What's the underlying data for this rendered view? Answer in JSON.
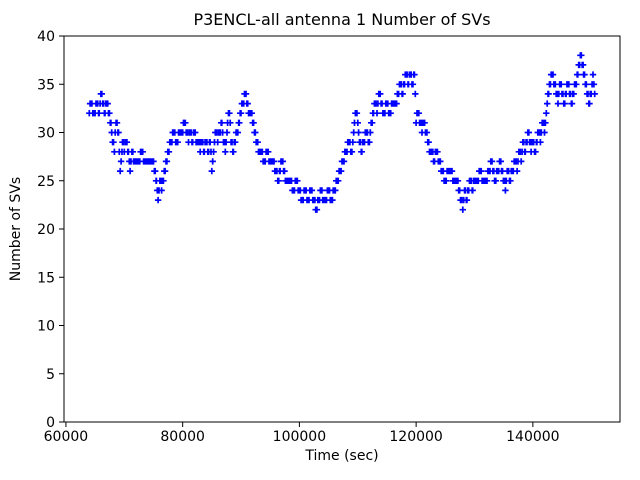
{
  "chart_data": {
    "type": "scatter",
    "title": "P3ENCL-all antenna 1 Number of SVs",
    "xlabel": "Time (sec)",
    "ylabel": "Number of SVs",
    "marker": "plus",
    "color": "#0000ff",
    "grid": false,
    "legend": "none",
    "xlim": [
      59670,
      154930
    ],
    "ylim": [
      0,
      40
    ],
    "xticks": [
      60000,
      80000,
      100000,
      120000,
      140000
    ],
    "yticks": [
      0,
      5,
      10,
      15,
      20,
      25,
      30,
      35,
      40
    ],
    "sample_step_sec": 150,
    "points": [
      [
        64000,
        32
      ],
      [
        64300,
        33
      ],
      [
        64700,
        32
      ],
      [
        65000,
        32
      ],
      [
        65300,
        33
      ],
      [
        65700,
        32
      ],
      [
        66000,
        34
      ],
      [
        66300,
        33
      ],
      [
        66700,
        32
      ],
      [
        67000,
        33
      ],
      [
        67300,
        32
      ],
      [
        67700,
        31
      ],
      [
        68000,
        29
      ],
      [
        68300,
        28
      ],
      [
        68600,
        31
      ],
      [
        69000,
        30
      ],
      [
        69300,
        26
      ],
      [
        69700,
        29
      ],
      [
        70000,
        28
      ],
      [
        70300,
        29
      ],
      [
        70700,
        28
      ],
      [
        71000,
        26
      ],
      [
        71300,
        28
      ],
      [
        71700,
        27
      ],
      [
        72000,
        27
      ],
      [
        72500,
        27
      ],
      [
        73000,
        28
      ],
      [
        73500,
        27
      ],
      [
        74000,
        27
      ],
      [
        74500,
        27
      ],
      [
        75000,
        27
      ],
      [
        75500,
        25
      ],
      [
        75800,
        23
      ],
      [
        76100,
        25
      ],
      [
        76400,
        24
      ],
      [
        76700,
        25
      ],
      [
        77000,
        26
      ],
      [
        77500,
        28
      ],
      [
        78000,
        29
      ],
      [
        78500,
        30
      ],
      [
        79000,
        29
      ],
      [
        79500,
        30
      ],
      [
        80000,
        30
      ],
      [
        80300,
        31
      ],
      [
        80700,
        30
      ],
      [
        81000,
        29
      ],
      [
        81300,
        30
      ],
      [
        81700,
        29
      ],
      [
        82000,
        30
      ],
      [
        82300,
        29
      ],
      [
        82700,
        29
      ],
      [
        83000,
        28
      ],
      [
        83300,
        29
      ],
      [
        83700,
        28
      ],
      [
        84000,
        29
      ],
      [
        84300,
        28
      ],
      [
        84700,
        29
      ],
      [
        85000,
        26
      ],
      [
        85300,
        28
      ],
      [
        85700,
        30
      ],
      [
        86000,
        29
      ],
      [
        86300,
        30
      ],
      [
        86700,
        31
      ],
      [
        87000,
        29
      ],
      [
        87300,
        28
      ],
      [
        87700,
        31
      ],
      [
        88000,
        32
      ],
      [
        88300,
        29
      ],
      [
        88700,
        28
      ],
      [
        89000,
        29
      ],
      [
        89300,
        30
      ],
      [
        89700,
        31
      ],
      [
        90000,
        32
      ],
      [
        90300,
        33
      ],
      [
        90700,
        34
      ],
      [
        91000,
        33
      ],
      [
        91300,
        32
      ],
      [
        91700,
        32
      ],
      [
        92000,
        31
      ],
      [
        92300,
        30
      ],
      [
        92700,
        29
      ],
      [
        93000,
        28
      ],
      [
        93500,
        28
      ],
      [
        94000,
        27
      ],
      [
        94500,
        28
      ],
      [
        95000,
        27
      ],
      [
        95500,
        27
      ],
      [
        96000,
        26
      ],
      [
        96300,
        25
      ],
      [
        96700,
        26
      ],
      [
        97000,
        27
      ],
      [
        97300,
        26
      ],
      [
        97700,
        25
      ],
      [
        98000,
        25
      ],
      [
        98500,
        25
      ],
      [
        99000,
        24
      ],
      [
        99500,
        25
      ],
      [
        100000,
        24
      ],
      [
        100500,
        23
      ],
      [
        101000,
        24
      ],
      [
        101500,
        23
      ],
      [
        102000,
        24
      ],
      [
        102500,
        23
      ],
      [
        103000,
        22
      ],
      [
        103300,
        23
      ],
      [
        103700,
        24
      ],
      [
        104000,
        23
      ],
      [
        104500,
        23
      ],
      [
        105000,
        24
      ],
      [
        105500,
        23
      ],
      [
        106000,
        24
      ],
      [
        106500,
        25
      ],
      [
        107000,
        26
      ],
      [
        107500,
        27
      ],
      [
        108000,
        28
      ],
      [
        108500,
        29
      ],
      [
        109000,
        28
      ],
      [
        109300,
        30
      ],
      [
        109700,
        32
      ],
      [
        110000,
        31
      ],
      [
        110300,
        29
      ],
      [
        110700,
        28
      ],
      [
        111000,
        29
      ],
      [
        111500,
        30
      ],
      [
        112000,
        29
      ],
      [
        112300,
        31
      ],
      [
        112700,
        32
      ],
      [
        113000,
        33
      ],
      [
        113300,
        32
      ],
      [
        113700,
        34
      ],
      [
        114000,
        33
      ],
      [
        114500,
        32
      ],
      [
        115000,
        33
      ],
      [
        115500,
        32
      ],
      [
        116000,
        33
      ],
      [
        116500,
        33
      ],
      [
        117000,
        34
      ],
      [
        117300,
        35
      ],
      [
        117700,
        34
      ],
      [
        118000,
        35
      ],
      [
        118300,
        36
      ],
      [
        118700,
        35
      ],
      [
        119000,
        36
      ],
      [
        119300,
        35
      ],
      [
        119700,
        36
      ],
      [
        120000,
        31
      ],
      [
        120300,
        32
      ],
      [
        120700,
        31
      ],
      [
        121000,
        30
      ],
      [
        121300,
        31
      ],
      [
        121700,
        30
      ],
      [
        122000,
        29
      ],
      [
        122300,
        28
      ],
      [
        122700,
        28
      ],
      [
        123000,
        27
      ],
      [
        123500,
        28
      ],
      [
        124000,
        27
      ],
      [
        124500,
        26
      ],
      [
        125000,
        25
      ],
      [
        125500,
        26
      ],
      [
        126000,
        26
      ],
      [
        126500,
        25
      ],
      [
        127000,
        25
      ],
      [
        127300,
        24
      ],
      [
        127700,
        23
      ],
      [
        128000,
        22
      ],
      [
        128300,
        24
      ],
      [
        128700,
        23
      ],
      [
        129000,
        24
      ],
      [
        129300,
        25
      ],
      [
        129700,
        24
      ],
      [
        130000,
        25
      ],
      [
        130500,
        25
      ],
      [
        131000,
        26
      ],
      [
        131500,
        25
      ],
      [
        132000,
        25
      ],
      [
        132500,
        26
      ],
      [
        133000,
        27
      ],
      [
        133500,
        25
      ],
      [
        134000,
        26
      ],
      [
        134500,
        27
      ],
      [
        135000,
        25
      ],
      [
        135300,
        24
      ],
      [
        135700,
        26
      ],
      [
        136000,
        25
      ],
      [
        136500,
        26
      ],
      [
        137000,
        27
      ],
      [
        137300,
        26
      ],
      [
        137700,
        28
      ],
      [
        138000,
        27
      ],
      [
        138300,
        29
      ],
      [
        138700,
        28
      ],
      [
        139000,
        29
      ],
      [
        139300,
        30
      ],
      [
        139700,
        28
      ],
      [
        140000,
        29
      ],
      [
        140300,
        28
      ],
      [
        140700,
        29
      ],
      [
        141000,
        30
      ],
      [
        141300,
        29
      ],
      [
        141700,
        31
      ],
      [
        142000,
        30
      ],
      [
        142300,
        32
      ],
      [
        142700,
        34
      ],
      [
        143000,
        35
      ],
      [
        143300,
        36
      ],
      [
        143700,
        35
      ],
      [
        144000,
        34
      ],
      [
        144300,
        33
      ],
      [
        144700,
        35
      ],
      [
        145000,
        34
      ],
      [
        145300,
        33
      ],
      [
        145700,
        34
      ],
      [
        146000,
        35
      ],
      [
        146300,
        34
      ],
      [
        146700,
        33
      ],
      [
        147000,
        34
      ],
      [
        147300,
        35
      ],
      [
        147700,
        36
      ],
      [
        148000,
        37
      ],
      [
        148300,
        38
      ],
      [
        148700,
        36
      ],
      [
        149000,
        35
      ],
      [
        149300,
        34
      ],
      [
        149700,
        33
      ],
      [
        150000,
        34
      ],
      [
        150300,
        36
      ],
      [
        150600,
        34
      ]
    ]
  }
}
